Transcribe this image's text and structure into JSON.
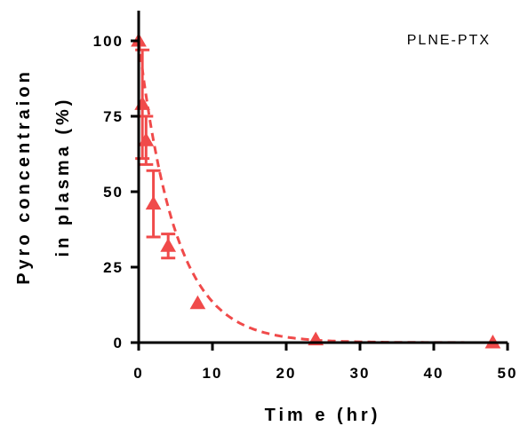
{
  "chart_data": {
    "type": "scatter",
    "legend": "PLNE-PTX",
    "legend_position": "top-right",
    "xlabel": "Tim e (hr)",
    "ylabel_line1": "Pyro concentraion",
    "ylabel_line2": "in plasma (%)",
    "xlim": [
      0,
      50
    ],
    "ylim": [
      0,
      110
    ],
    "xticks": [
      0,
      10,
      20,
      30,
      40,
      50
    ],
    "yticks": [
      0,
      25,
      50,
      75,
      100
    ],
    "xtick_labels": [
      "0",
      "10",
      "20",
      "30",
      "40",
      "50"
    ],
    "ytick_labels": [
      "0",
      "25",
      "50",
      "75",
      "100"
    ],
    "grid": false,
    "color": "#f04a4a",
    "series": [
      {
        "x": [
          0,
          0.5,
          1,
          2,
          4,
          8,
          24,
          48
        ],
        "y": [
          100,
          79,
          67,
          46,
          32,
          13,
          1,
          0
        ],
        "yerr": [
          0,
          18,
          8,
          11,
          4,
          0,
          0,
          0
        ],
        "marker": "triangle"
      }
    ],
    "fit": {
      "style": "dashed",
      "model": "exponential decay",
      "y0": 100,
      "k": 0.2
    }
  }
}
